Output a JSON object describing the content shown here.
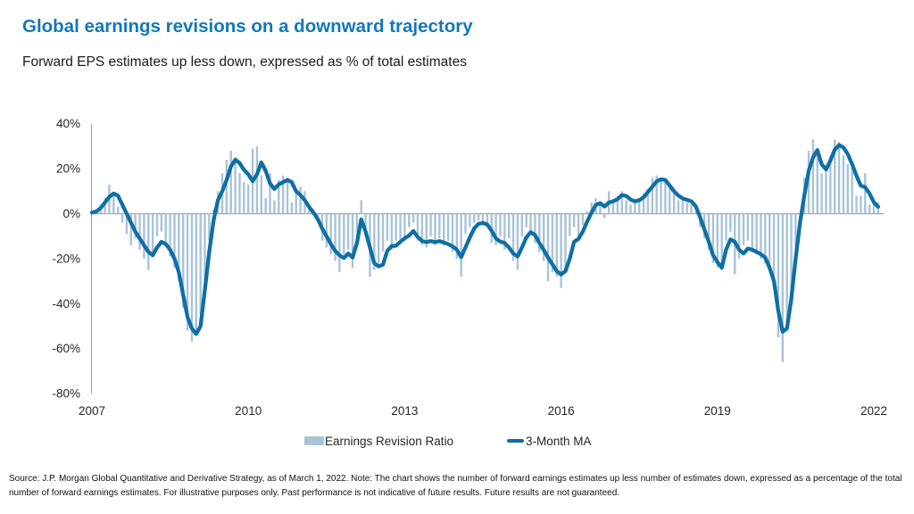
{
  "header": {
    "title": "Global earnings revisions on a downward trajectory",
    "subtitle": "Forward EPS estimates up less down, expressed as % of total estimates"
  },
  "colors": {
    "title_blue": "#1377ba",
    "bar_blue": "#a9c3d7",
    "line_blue": "#0f6fa5",
    "axis_gray": "#a0a0a0",
    "text_dark": "#262626"
  },
  "chart_data": {
    "type": "bar",
    "subtype": "monthly bars with 3-month moving-average line overlay",
    "unit": "%",
    "x_range": [
      "2007-01",
      "2022-02"
    ],
    "frequency": "monthly",
    "ylim": [
      -80,
      40
    ],
    "y_tick_labels": [
      "40%",
      "20%",
      "0%",
      "-20%",
      "-40%",
      "-60%",
      "-80%"
    ],
    "x_tick_labels": [
      "2007",
      "2010",
      "2013",
      "2016",
      "2019",
      "2022"
    ],
    "grid": "zero line only",
    "legend_position": "bottom",
    "series": [
      {
        "name": "Earnings Revision Ratio",
        "type": "bar",
        "color": "#a9c3d7",
        "values": [
          1,
          2,
          4,
          7,
          13,
          9,
          3,
          -4,
          -9,
          -14,
          -11,
          -16,
          -20,
          -25,
          -18,
          -10,
          -8,
          -14,
          -19,
          -24,
          -30,
          -42,
          -52,
          -57,
          -54,
          -45,
          -30,
          -12,
          2,
          10,
          18,
          24,
          28,
          25,
          18,
          14,
          13,
          29,
          30,
          17,
          7,
          18,
          6,
          15,
          17,
          16,
          5,
          9,
          12,
          10,
          4,
          2,
          -3,
          -12,
          -15,
          -18,
          -21,
          -26,
          -18,
          -16,
          -24,
          -10,
          6,
          -9,
          -28,
          -25,
          -22,
          -17,
          -12,
          -16,
          -12,
          -12,
          -12,
          -6,
          -4,
          -12,
          -14,
          -15,
          -10,
          -14,
          -11,
          -14,
          -12,
          -17,
          -20,
          -28,
          -9,
          -6,
          -4,
          -3,
          -5,
          -6,
          -13,
          -14,
          -10,
          -16,
          -11,
          -21,
          -25,
          -10,
          -6,
          -8,
          -13,
          -17,
          -21,
          -30,
          -26,
          -28,
          -33,
          -26,
          -10,
          -6,
          -12,
          -5,
          1,
          5,
          7,
          5,
          -2,
          10,
          6,
          7,
          10,
          6,
          4,
          5,
          7,
          9,
          11,
          16,
          17,
          16,
          14,
          12,
          9,
          6,
          7,
          5,
          4,
          1,
          -6,
          -11,
          -16,
          -22,
          -24,
          -25,
          -12,
          -8,
          -27,
          -20,
          -14,
          -12,
          -17,
          -18,
          -20,
          -22,
          -24,
          -30,
          -55,
          -66,
          -52,
          -35,
          -15,
          0,
          16,
          28,
          33,
          26,
          18,
          20,
          26,
          33,
          32,
          26,
          22,
          21,
          8,
          8,
          18,
          4,
          6,
          5
        ]
      },
      {
        "name": "3-Month MA",
        "type": "line",
        "color": "#0f6fa5",
        "values": [
          0.5,
          1,
          2.5,
          5,
          7.5,
          9,
          8,
          4,
          0,
          -4,
          -8,
          -11,
          -14,
          -17,
          -18.5,
          -15,
          -12.5,
          -13.5,
          -16,
          -20,
          -26,
          -36,
          -46,
          -51,
          -53.5,
          -50,
          -34,
          -17,
          -3,
          6,
          10,
          15,
          21,
          24,
          22.5,
          19.5,
          17.5,
          14.5,
          17.5,
          22.8,
          19,
          13.5,
          11,
          13,
          14,
          15,
          14,
          10,
          8.3,
          6,
          3,
          0.5,
          -2.5,
          -6.5,
          -10,
          -13.5,
          -16.5,
          -18.5,
          -19.7,
          -17.7,
          -19.5,
          -13,
          -2.5,
          -8,
          -15,
          -22,
          -23.4,
          -22.6,
          -16.5,
          -14.4,
          -14.2,
          -12.5,
          -10.9,
          -9.7,
          -7.7,
          -10.3,
          -12.2,
          -12.6,
          -12.2,
          -12.6,
          -12.2,
          -12.8,
          -13.5,
          -14.5,
          -16,
          -19.3,
          -15,
          -10.5,
          -6.5,
          -4.5,
          -4.1,
          -4.8,
          -7.5,
          -11,
          -12.4,
          -13,
          -15,
          -17.7,
          -19,
          -15,
          -10.5,
          -8.2,
          -9.5,
          -13,
          -16,
          -19.5,
          -22.5,
          -25.5,
          -27,
          -25.5,
          -20,
          -12.5,
          -11.2,
          -8,
          -3.5,
          0.5,
          3.9,
          4.7,
          3.2,
          5,
          5.5,
          6.5,
          8.3,
          7.9,
          6.3,
          5.5,
          6,
          7.3,
          9.7,
          12,
          14.4,
          15.3,
          15,
          12.5,
          10,
          8.1,
          6.8,
          6.2,
          5.5,
          3.3,
          -1.5,
          -7,
          -12.5,
          -18.5,
          -21.5,
          -24,
          -16,
          -11.4,
          -12.5,
          -16,
          -17.7,
          -15.5,
          -16,
          -17,
          -18,
          -19.5,
          -24,
          -30,
          -43,
          -52.5,
          -51,
          -38,
          -20,
          -4,
          8,
          19,
          25,
          28.3,
          22,
          19.7,
          23.6,
          28.5,
          30.5,
          29.5,
          26.5,
          22,
          16.9,
          12.5,
          11.8,
          9,
          5.1,
          3.1
        ]
      }
    ]
  },
  "footer": {
    "text": "Source: J.P. Morgan Global Quantitative and Derivative Strategy, as of March 1, 2022. Note: The chart shows the number of forward earnings estimates up less number of estimates down, expressed as a percentage of the total number of forward earnings estimates. For illustrative purposes only. Past performance is not indicative of future results. Future results are not guaranteed."
  }
}
